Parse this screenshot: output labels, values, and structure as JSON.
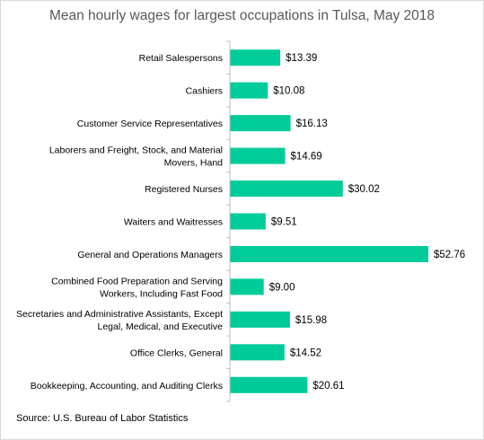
{
  "chart_data": {
    "type": "bar",
    "orientation": "horizontal",
    "title": "Mean hourly wages for largest occupations in Tulsa, May 2018",
    "xlabel": "",
    "ylabel": "",
    "source": "Source: U.S. Bureau of Labor Statistics",
    "categories": [
      [
        "Retail Salespersons"
      ],
      [
        "Cashiers"
      ],
      [
        "Customer Service Representatives"
      ],
      [
        "Laborers and Freight, Stock, and Material",
        "Movers, Hand"
      ],
      [
        "Registered Nurses"
      ],
      [
        "Waiters and Waitresses"
      ],
      [
        "General and Operations Managers"
      ],
      [
        "Combined Food Preparation and Serving",
        "Workers, Including Fast Food"
      ],
      [
        "Secretaries and Administrative Assistants, Except",
        "Legal, Medical, and Executive"
      ],
      [
        "Office Clerks, General"
      ],
      [
        "Bookkeeping, Accounting, and Auditing Clerks"
      ]
    ],
    "values": [
      13.39,
      10.08,
      16.13,
      14.69,
      30.02,
      9.51,
      52.76,
      9.0,
      15.98,
      14.52,
      20.61
    ],
    "value_labels": [
      "$13.39",
      "$10.08",
      "$16.13",
      "$14.69",
      "$30.02",
      "$9.51",
      "$52.76",
      "$9.00",
      "$15.98",
      "$14.52",
      "$20.61"
    ],
    "xlim": [
      0,
      52.76
    ],
    "grid": false,
    "legend": "none",
    "bar_color": "#00cc99",
    "axis_color": "#bfbfbf"
  }
}
